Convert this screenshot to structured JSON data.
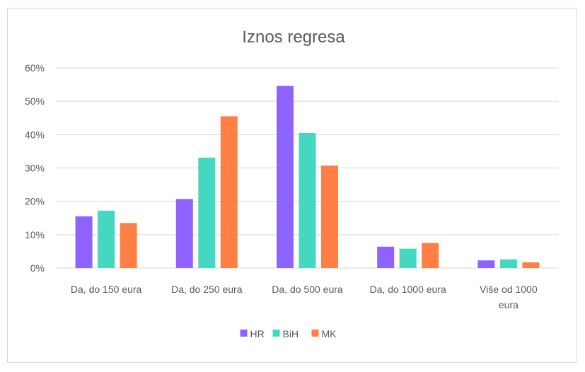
{
  "chart_data": {
    "type": "bar",
    "title": "Iznos regresa",
    "xlabel": "",
    "ylabel": "",
    "categories": [
      [
        "Da, do 150 eura"
      ],
      [
        "Da, do 250 eura"
      ],
      [
        "Da, do 500 eura"
      ],
      [
        "Da, do 1000 eura"
      ],
      [
        "Više od 1000",
        "eura"
      ]
    ],
    "series": [
      {
        "name": "HR",
        "color": "#8f63ff",
        "values": [
          0.155,
          0.207,
          0.546,
          0.064,
          0.023
        ]
      },
      {
        "name": "BiH",
        "color": "#43d8bf",
        "values": [
          0.172,
          0.331,
          0.405,
          0.058,
          0.026
        ]
      },
      {
        "name": "MK",
        "color": "#ff7f45",
        "values": [
          0.135,
          0.455,
          0.307,
          0.075,
          0.017
        ]
      }
    ],
    "ylim": [
      0,
      0.6
    ],
    "yticks": [
      "0%",
      "10%",
      "20%",
      "30%",
      "40%",
      "50%",
      "60%"
    ],
    "grid": true,
    "legend": "bottom"
  }
}
